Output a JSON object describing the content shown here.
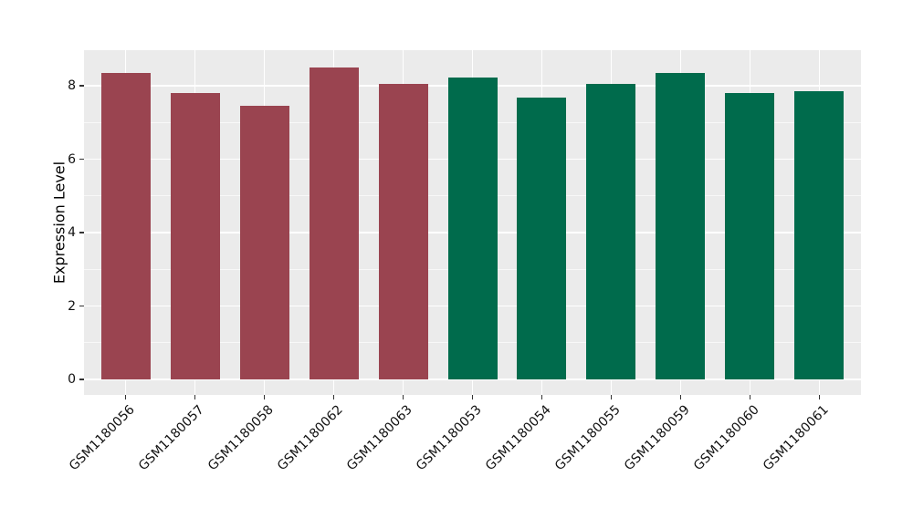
{
  "chart_data": {
    "type": "bar",
    "title": "",
    "ylabel": "Expression Level",
    "xlabel": "",
    "categories": [
      "GSM1180056",
      "GSM1180057",
      "GSM1180058",
      "GSM1180062",
      "GSM1180063",
      "GSM1180053",
      "GSM1180054",
      "GSM1180055",
      "GSM1180059",
      "GSM1180060",
      "GSM1180061"
    ],
    "values": [
      8.35,
      7.8,
      7.45,
      8.5,
      8.05,
      8.23,
      7.68,
      8.04,
      8.35,
      7.8,
      7.86
    ],
    "groups": [
      "group1",
      "group1",
      "group1",
      "group1",
      "group1",
      "group2",
      "group2",
      "group2",
      "group2",
      "group2",
      "group2"
    ],
    "group_colors": {
      "group1": "#9A4450",
      "group2": "#006B4C"
    },
    "yticks_major": [
      0,
      2,
      4,
      6,
      8
    ],
    "yticks_minor": [
      1,
      3,
      5,
      7
    ],
    "ylim": [
      0,
      8.95
    ],
    "legend": false,
    "grid": true,
    "panel_bg": "#EBEBEB",
    "grid_color": "#FFFFFF",
    "tick_color": "#333333",
    "bar_width_ratio": 0.71
  }
}
